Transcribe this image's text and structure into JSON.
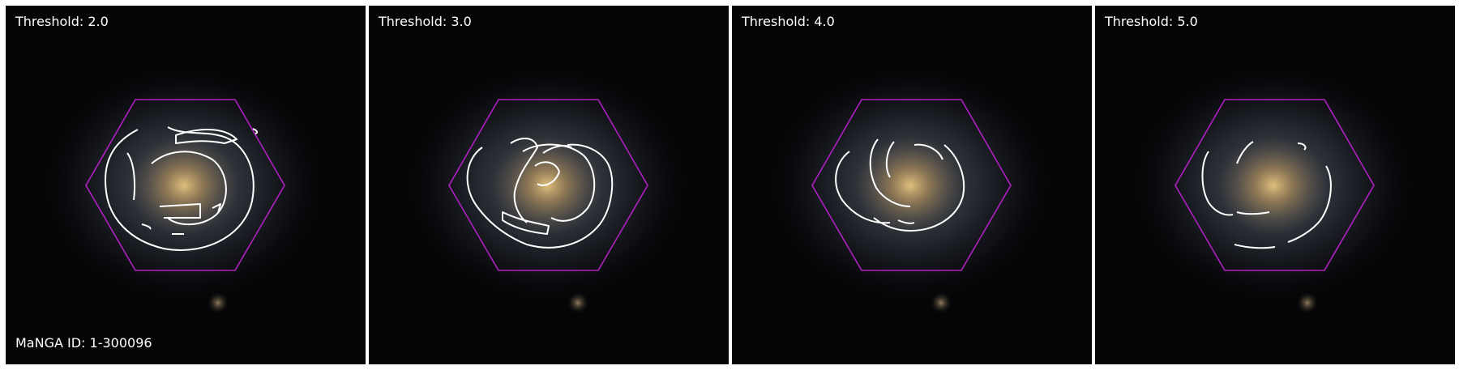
{
  "panels": [
    {
      "title": "Threshold: 2.0"
    },
    {
      "title": "Threshold: 3.0"
    },
    {
      "title": "Threshold: 4.0"
    },
    {
      "title": "Threshold: 5.0"
    }
  ],
  "footer": {
    "id_label": "MaNGA ID: 1-300096"
  },
  "colors": {
    "hexagon": "#b020c0",
    "contour": "#ffffff",
    "background": "#050507"
  }
}
